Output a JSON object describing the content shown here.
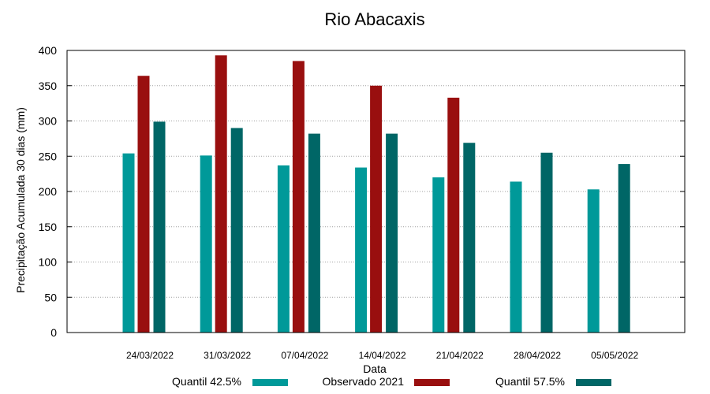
{
  "chart_data": {
    "type": "bar",
    "title": "Rio Abacaxis",
    "xlabel": "Data",
    "ylabel": "Precipitação Acumulada 30 dias (mm)",
    "ylim": [
      0,
      400
    ],
    "yticks": [
      0,
      50,
      100,
      150,
      200,
      250,
      300,
      350,
      400
    ],
    "grid": true,
    "legend_position": "bottom",
    "categories": [
      "24/03/2022",
      "31/03/2022",
      "07/04/2022",
      "14/04/2022",
      "21/04/2022",
      "28/04/2022",
      "05/05/2022"
    ],
    "series": [
      {
        "name": "Quantil 42.5%",
        "color": "#009999",
        "values": [
          254,
          251,
          237,
          234,
          220,
          214,
          203
        ]
      },
      {
        "name": "Observado 2021",
        "color": "#990f0f",
        "values": [
          364,
          393,
          385,
          350,
          333,
          null,
          null
        ]
      },
      {
        "name": "Quantil 57.5%",
        "color": "#006666",
        "values": [
          299,
          290,
          282,
          282,
          269,
          255,
          239
        ]
      }
    ]
  }
}
